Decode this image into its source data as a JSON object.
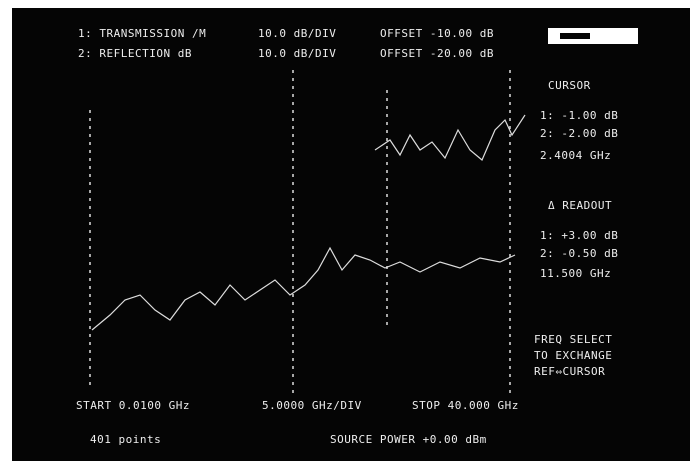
{
  "header": {
    "lines": [
      {
        "label": "1: TRANSMISSION /M",
        "scale": "10.0 dB/DIV",
        "offset": "OFFSET -10.00 dB"
      },
      {
        "label": "2: REFLECTION dB",
        "scale": "10.0 dB/DIV",
        "offset": "OFFSET -20.00 dB"
      }
    ]
  },
  "cursor": {
    "title": "CURSOR",
    "readings": [
      "1: -1.00 dB",
      "2: -2.00 dB",
      "2.4004 GHz"
    ]
  },
  "delta": {
    "title": "Δ READOUT",
    "readings": [
      "1: +3.00 dB",
      "2: -0.50 dB",
      "11.500 GHz"
    ]
  },
  "help": [
    "FREQ SELECT",
    "TO EXCHANGE",
    "REF⇔CURSOR"
  ],
  "footer": {
    "start": "START 0.0100 GHz",
    "div": "5.0000 GHz/DIV",
    "stop": "STOP 40.000 GHz",
    "points": "401 points",
    "power": "SOURCE POWER +0.00 dBm"
  }
}
